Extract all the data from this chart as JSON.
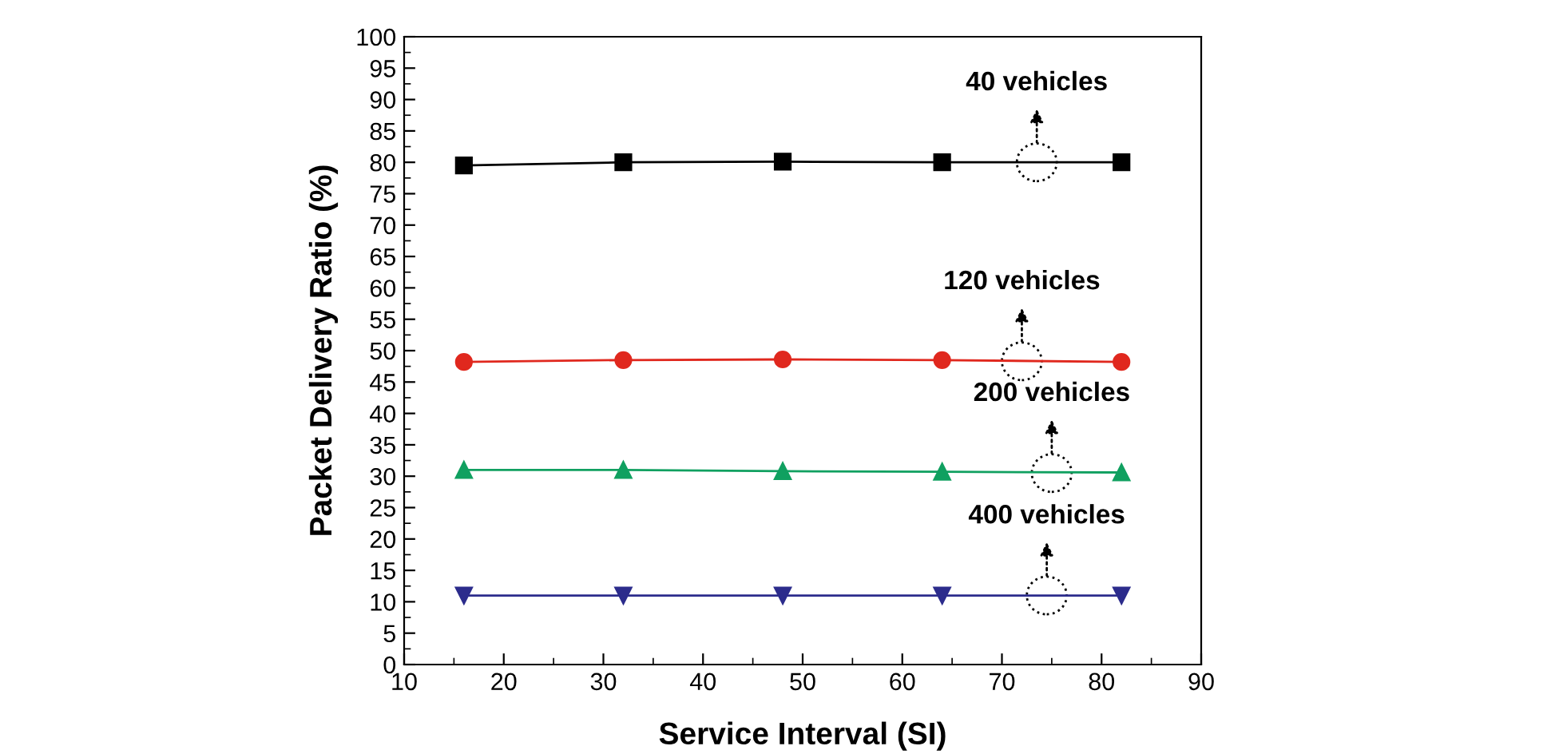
{
  "chart_data": {
    "type": "line",
    "xlabel": "Service Interval (SI)",
    "ylabel": "Packet Delivery Ratio (%)",
    "x": [
      16,
      32,
      48,
      64,
      82
    ],
    "series": [
      {
        "color": "#000000",
        "marker": "square",
        "values": [
          79.5,
          80,
          80.1,
          80,
          80
        ]
      },
      {
        "color": "#e0281e",
        "marker": "circle",
        "values": [
          48.2,
          48.5,
          48.6,
          48.5,
          48.2
        ]
      },
      {
        "color": "#10a060",
        "marker": "triangle",
        "values": [
          31,
          31,
          30.8,
          30.7,
          30.6
        ]
      },
      {
        "color": "#2c2c8c",
        "marker": "triangle_down",
        "values": [
          11,
          11,
          11,
          11,
          11
        ]
      }
    ],
    "annotations": [
      {
        "text": "40 vehicles",
        "x": 73.5,
        "y": 80
      },
      {
        "text": "120 vehicles",
        "x": 72,
        "y": 48.3
      },
      {
        "text": "200 vehicles",
        "x": 75,
        "y": 30.5
      },
      {
        "text": "400 vehicles",
        "x": 74.5,
        "y": 11
      }
    ],
    "xlim": [
      10,
      90
    ],
    "xticks": [
      10,
      20,
      30,
      40,
      50,
      60,
      70,
      80,
      90
    ],
    "ylim": [
      0,
      100
    ],
    "yticks": [
      0,
      5,
      10,
      15,
      20,
      25,
      30,
      35,
      40,
      45,
      50,
      55,
      60,
      65,
      70,
      75,
      80,
      85,
      90,
      95,
      100
    ],
    "grid": false,
    "legend": false,
    "line_style": "solid"
  }
}
